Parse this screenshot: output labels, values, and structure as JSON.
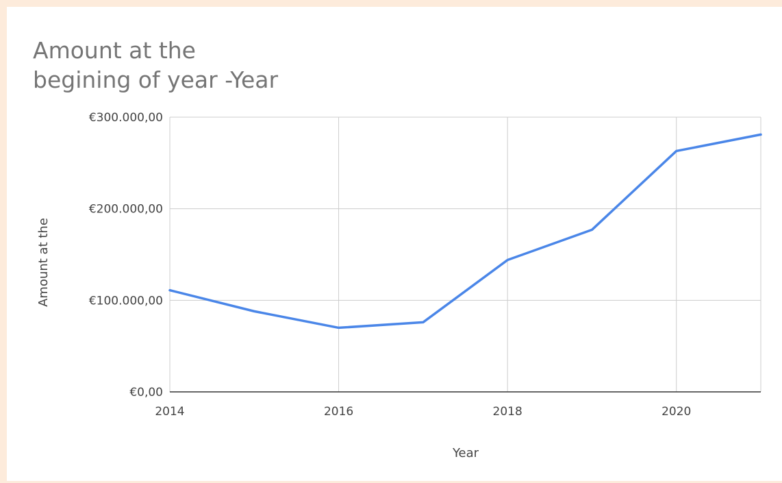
{
  "colors": {
    "page_background": "#fdebdb",
    "card_background": "#ffffff",
    "line": "#4a86e8",
    "grid": "#cccccc",
    "axis": "#333333",
    "title_text": "#757575",
    "label_text": "#444444"
  },
  "chart_data": {
    "type": "line",
    "title_lines": [
      "Amount at the",
      "begining of year -Year"
    ],
    "xlabel": "Year",
    "ylabel": "Amount at the",
    "xlim": [
      2014,
      2021
    ],
    "ylim": [
      0,
      300000
    ],
    "x_ticks": [
      2014,
      2016,
      2018,
      2020
    ],
    "x_tick_labels": [
      "2014",
      "2016",
      "2018",
      "2020"
    ],
    "y_ticks": [
      0,
      100000,
      200000,
      300000
    ],
    "y_tick_labels": [
      "€0,00",
      "€100.000,00",
      "€200.000,00",
      "€300.000,00"
    ],
    "grid": true,
    "legend": "none",
    "series": [
      {
        "x": [
          2014,
          2015,
          2016,
          2017,
          2018,
          2019,
          2020,
          2021
        ],
        "values": [
          111000,
          88000,
          70000,
          76000,
          144000,
          177000,
          263000,
          281000
        ]
      }
    ]
  }
}
